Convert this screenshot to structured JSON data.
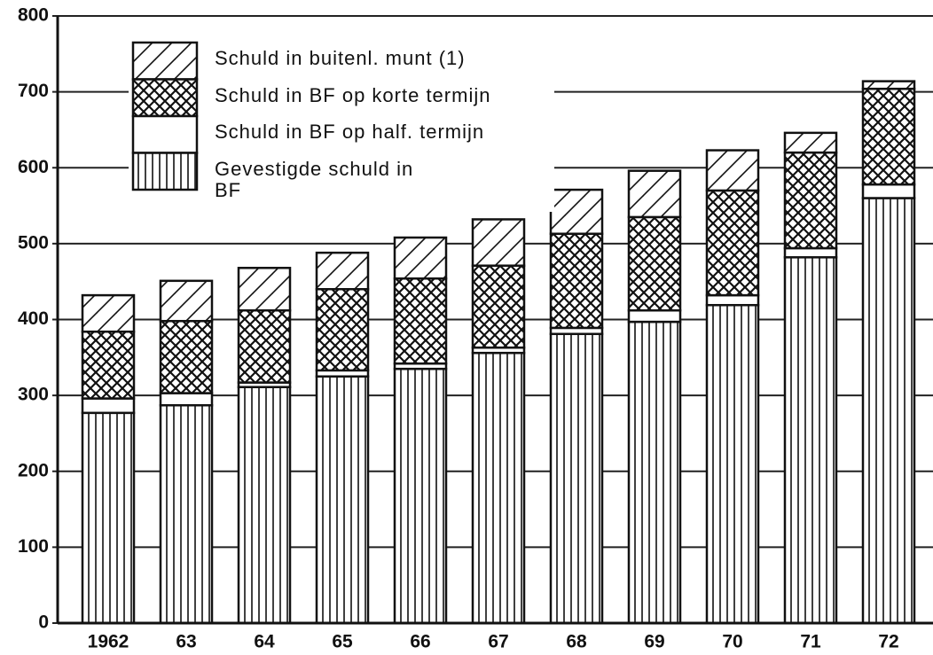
{
  "chart_data": {
    "type": "stacked_bar",
    "categories": [
      "1962",
      "63",
      "64",
      "65",
      "66",
      "67",
      "68",
      "69",
      "70",
      "71",
      "72"
    ],
    "series": [
      {
        "name": "Gevestigde schuld in BF",
        "color": "#111111",
        "pattern": "vertical",
        "values": [
          277,
          287,
          311,
          325,
          335,
          356,
          381,
          397,
          419,
          482,
          560
        ]
      },
      {
        "name": "Schuld in BF op half. termijn",
        "color": "#111111",
        "pattern": "none",
        "values": [
          19,
          16,
          6,
          8,
          7,
          7,
          8,
          15,
          13,
          12,
          18
        ]
      },
      {
        "name": "Schuld in BF op korte termijn",
        "color": "#111111",
        "pattern": "crosshatch",
        "values": [
          88,
          95,
          95,
          107,
          112,
          108,
          124,
          123,
          138,
          126,
          126
        ]
      },
      {
        "name": "Schuld in buitenl. munt (1)",
        "color": "#111111",
        "pattern": "hatch",
        "values": [
          48,
          53,
          56,
          48,
          54,
          61,
          58,
          61,
          53,
          26,
          10
        ]
      }
    ],
    "ylim": [
      0,
      800
    ],
    "yticks": [
      0,
      100,
      200,
      300,
      400,
      500,
      600,
      700,
      800
    ],
    "grid": true
  }
}
